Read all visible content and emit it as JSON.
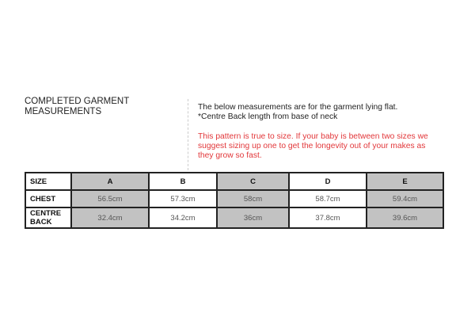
{
  "title": {
    "line1": "COMPLETED GARMENT",
    "line2": "MEASUREMENTS"
  },
  "notes": {
    "line1": "The below measurements are for the garment lying flat.",
    "line2": "*Centre Back length from base of neck",
    "warning": "This pattern is true to size. If your baby is between two sizes we suggest sizing up one to get the longevity out of your makes as they grow so fast."
  },
  "colors": {
    "warning": "#e2373a",
    "shaded": "#c2c2c2"
  },
  "table": {
    "headers": [
      "SIZE",
      "A",
      "B",
      "C",
      "D",
      "E"
    ],
    "rows": [
      {
        "label": "CHEST",
        "values": [
          "56.5cm",
          "57.3cm",
          "58cm",
          "58.7cm",
          "59.4cm"
        ]
      },
      {
        "label_line1": "CENTRE",
        "label_line2": "BACK",
        "values": [
          "32.4cm",
          "34.2cm",
          "36cm",
          "37.8cm",
          "39.6cm"
        ]
      }
    ]
  }
}
